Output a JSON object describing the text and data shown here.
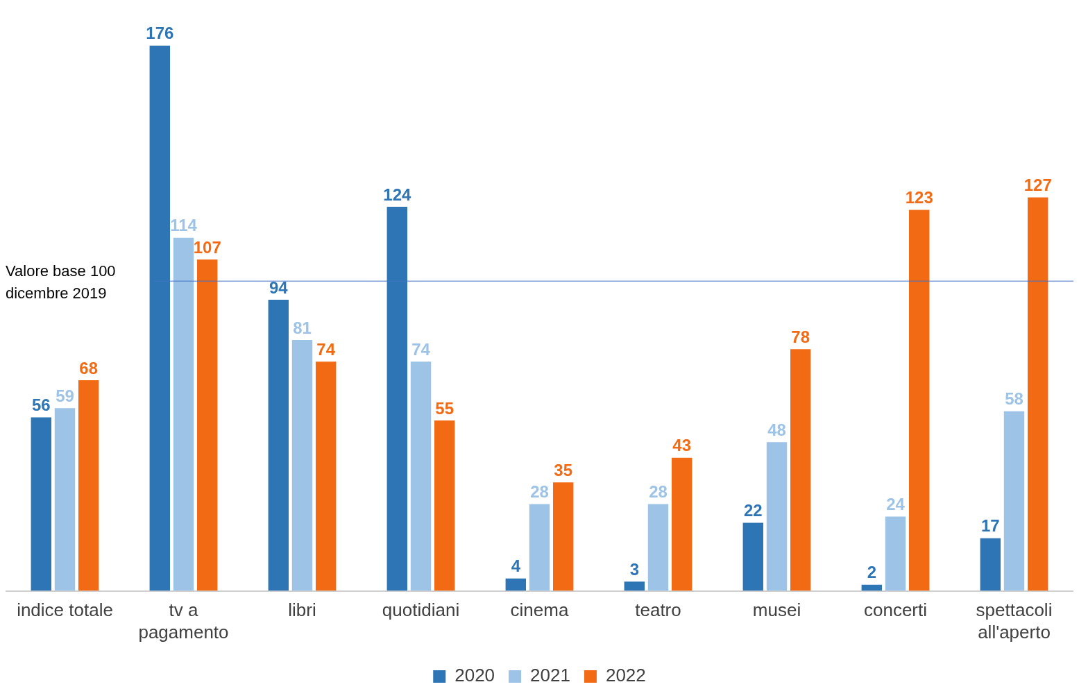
{
  "chart_data": {
    "type": "bar",
    "categories": [
      "indice totale",
      "tv a pagamento",
      "libri",
      "quotidiani",
      "cinema",
      "teatro",
      "musei",
      "concerti",
      "spettacoli all'aperto"
    ],
    "series": [
      {
        "name": "2020",
        "color": "#2e75b6",
        "values": [
          56,
          176,
          94,
          124,
          4,
          3,
          22,
          2,
          17
        ]
      },
      {
        "name": "2021",
        "color": "#9dc3e6",
        "values": [
          59,
          114,
          81,
          74,
          28,
          28,
          48,
          24,
          58
        ]
      },
      {
        "name": "2022",
        "color": "#f26b14",
        "values": [
          68,
          107,
          74,
          55,
          35,
          43,
          78,
          123,
          127
        ]
      }
    ],
    "data_labels": true,
    "legend": "bottom",
    "grid": false,
    "ref_lines": [
      {
        "axis": "y",
        "value": 100,
        "label": "Valore base 100 dicembre 2019",
        "color": "#4472c4"
      }
    ]
  }
}
